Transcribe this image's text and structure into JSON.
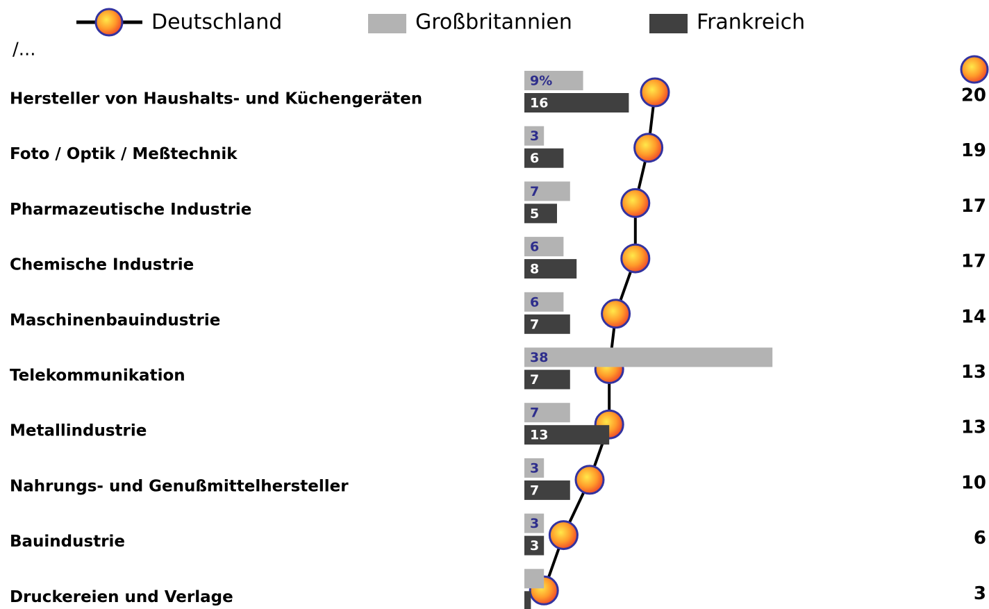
{
  "chart_data": {
    "type": "bar_line",
    "subtitle": "/...",
    "categories": [
      "Hersteller von Haushalts- und Küchengeräten",
      "Foto / Optik / Meßtechnik",
      "Pharmazeutische Industrie",
      "Chemische Industrie",
      "Maschinenbauindustrie",
      "Telekommunikation",
      "Metallindustrie",
      "Nahrungs- und Genußmittelhersteller",
      "Bauindustrie",
      "Druckereien und Verlage"
    ],
    "xlim": [
      0,
      70
    ],
    "series": [
      {
        "name": "Deutschland",
        "type": "line",
        "color": "#000000",
        "values": [
          20,
          19,
          17,
          17,
          14,
          13,
          13,
          10,
          6,
          3
        ]
      },
      {
        "name": "Großbritannien",
        "type": "bar",
        "color": "#b3b3b3",
        "values": [
          9,
          3,
          7,
          6,
          6,
          38,
          7,
          3,
          3,
          3
        ],
        "value_labels": [
          "9%",
          "3",
          "7",
          "6",
          "6",
          "38",
          "7",
          "3",
          "3",
          null
        ]
      },
      {
        "name": "Frankreich",
        "type": "bar",
        "color": "#404040",
        "values": [
          16,
          6,
          5,
          8,
          7,
          7,
          13,
          7,
          3,
          1
        ],
        "value_labels": [
          "16",
          "6",
          "5",
          "8",
          "7",
          "7",
          "13",
          "7",
          "3",
          null
        ]
      }
    ]
  }
}
